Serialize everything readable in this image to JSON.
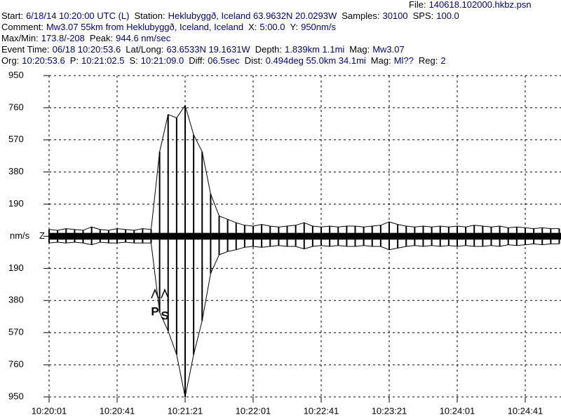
{
  "header": {
    "lines": [
      [
        "File:",
        "140618.102000.hkbz.psn"
      ],
      [
        "Start:",
        "6/18/14 10:20:00 UTC (L)",
        "Station:",
        "Heklubyggð, Iceland 63.9632N 20.0293W",
        "Samples:",
        "30100",
        "SPS:",
        "100.0"
      ],
      [
        "Comment:",
        "Mw3.07 55km from Heklubyggð, Iceland, Iceland",
        "X:",
        "5:00.0",
        "Y:",
        "950nm/s"
      ],
      [
        "Max/Min:",
        "173.8/-208",
        "Peak:",
        "944.6 nm/sec"
      ],
      [
        "Event Time:",
        "06/18 10:20:53.6",
        "Lat/Long:",
        "63.6533N 19.1631W",
        "Depth:",
        "1.839km 1.1mi",
        "Mag:",
        "Mw3.07"
      ],
      [
        "Org:",
        "10:20:53.6",
        "P:",
        "10:21:02.5",
        "S:",
        "10:21:09.0",
        "Diff:",
        "06.5sec",
        "Dist:",
        "0.494deg 55.0km 34.1mi",
        "Mag:",
        "Ml??",
        "Reg:",
        "2"
      ]
    ]
  },
  "chart_data": {
    "type": "seismogram",
    "channel": "Z",
    "annotations": [
      "P",
      "S"
    ],
    "x": [
      "10:20:01",
      "10:20:06",
      "10:20:11",
      "10:20:16",
      "10:20:21",
      "10:20:26",
      "10:20:31",
      "10:20:36",
      "10:20:41",
      "10:20:46",
      "10:20:51",
      "10:20:56",
      "10:21:01",
      "10:21:06",
      "10:21:11",
      "10:21:16",
      "10:21:21",
      "10:21:26",
      "10:21:31",
      "10:21:36",
      "10:21:41",
      "10:21:46",
      "10:21:51",
      "10:21:56",
      "10:22:01",
      "10:22:06",
      "10:22:11",
      "10:22:16",
      "10:22:21",
      "10:22:26",
      "10:22:31",
      "10:22:36",
      "10:22:41",
      "10:22:46",
      "10:22:51",
      "10:22:56",
      "10:23:01",
      "10:23:06",
      "10:23:11",
      "10:23:16",
      "10:23:21",
      "10:23:26",
      "10:23:31",
      "10:23:36",
      "10:23:41",
      "10:23:46",
      "10:23:51",
      "10:23:56",
      "10:24:01",
      "10:24:06",
      "10:24:11",
      "10:24:16",
      "10:24:21",
      "10:24:26",
      "10:24:31",
      "10:24:36",
      "10:24:41",
      "10:24:46",
      "10:24:51",
      "10:24:56",
      "10:25:01"
    ],
    "series": [
      {
        "name": "upper",
        "color": "#000000",
        "values": [
          40,
          35,
          45,
          40,
          35,
          55,
          40,
          35,
          45,
          40,
          35,
          45,
          40,
          500,
          720,
          700,
          773,
          600,
          500,
          250,
          120,
          100,
          80,
          65,
          60,
          70,
          60,
          55,
          60,
          65,
          80,
          60,
          55,
          60,
          55,
          60,
          60,
          55,
          60,
          65,
          85,
          70,
          60,
          55,
          60,
          55,
          60,
          55,
          60,
          55,
          65,
          60,
          55,
          60,
          50,
          55,
          50,
          45,
          50,
          45,
          45
        ]
      },
      {
        "name": "lower",
        "color": "#000000",
        "values": [
          -40,
          -35,
          -40,
          -35,
          -40,
          -50,
          -35,
          -40,
          -40,
          -35,
          -40,
          -40,
          -40,
          -450,
          -560,
          -700,
          -950,
          -700,
          -500,
          -220,
          -110,
          -90,
          -80,
          -65,
          -60,
          -65,
          -60,
          -55,
          -60,
          -60,
          -75,
          -60,
          -55,
          -60,
          -55,
          -60,
          -60,
          -55,
          -60,
          -60,
          -80,
          -70,
          -60,
          -55,
          -60,
          -55,
          -60,
          -55,
          -60,
          -55,
          -60,
          -60,
          -55,
          -60,
          -50,
          -55,
          -50,
          -45,
          -50,
          -45,
          -45
        ]
      }
    ],
    "xticks": [
      "10:20:01",
      "10:20:41",
      "10:21:21",
      "10:22:01",
      "10:22:41",
      "10:23:21",
      "10:24:01",
      "10:24:41"
    ],
    "ylim": [
      -950,
      950
    ],
    "yticks": [
      950,
      760,
      570,
      380,
      190,
      {
        "value": 0,
        "label": "nm/s"
      },
      {
        "value": -190,
        "label": "190"
      },
      {
        "value": -380,
        "label": "380"
      },
      {
        "value": -570,
        "label": "570"
      },
      {
        "value": -760,
        "label": "760"
      },
      {
        "value": -950,
        "label": "950"
      }
    ],
    "grid": true
  }
}
